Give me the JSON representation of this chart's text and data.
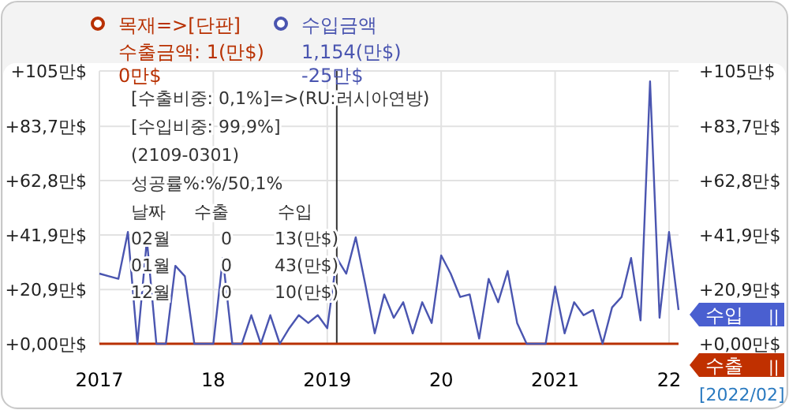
{
  "chart_data": {
    "type": "line",
    "x": [
      "2017-01",
      "2017-02",
      "2017-03",
      "2017-04",
      "2017-05",
      "2017-06",
      "2017-07",
      "2017-08",
      "2017-09",
      "2017-10",
      "2017-11",
      "2017-12",
      "2018-01",
      "2018-02",
      "2018-03",
      "2018-04",
      "2018-05",
      "2018-06",
      "2018-07",
      "2018-08",
      "2018-09",
      "2018-10",
      "2018-11",
      "2018-12",
      "2019-01",
      "2019-02",
      "2019-03",
      "2019-04",
      "2019-05",
      "2019-06",
      "2019-07",
      "2019-08",
      "2019-09",
      "2019-10",
      "2019-11",
      "2019-12",
      "2020-01",
      "2020-02",
      "2020-03",
      "2020-04",
      "2020-05",
      "2020-06",
      "2020-07",
      "2020-08",
      "2020-09",
      "2020-10",
      "2020-11",
      "2020-12",
      "2021-01",
      "2021-02",
      "2021-03",
      "2021-04",
      "2021-05",
      "2021-06",
      "2021-07",
      "2021-08",
      "2021-09",
      "2021-10",
      "2021-11",
      "2021-12",
      "2022-01",
      "2022-02"
    ],
    "series": [
      {
        "name": "목재=>[단판]",
        "color": "#b83000",
        "values": [
          0,
          0,
          0,
          0,
          0,
          0,
          0,
          0,
          0,
          0,
          0,
          0,
          0,
          0,
          0,
          0,
          0,
          0,
          0,
          0,
          0,
          0,
          0,
          0,
          0,
          0,
          0,
          0,
          0,
          0,
          0,
          0,
          0,
          0,
          0,
          0,
          0,
          0,
          0,
          0,
          0,
          0,
          0,
          0,
          0,
          0,
          0,
          0,
          0,
          0,
          0,
          0,
          0,
          0,
          0,
          0,
          0,
          0,
          0,
          0,
          0,
          0
        ]
      },
      {
        "name": "수입금액",
        "color": "#4a55b0",
        "values": [
          27,
          26,
          25,
          43,
          0,
          40,
          0,
          0,
          30,
          26,
          0,
          0,
          0,
          33,
          0,
          0,
          11,
          0,
          11,
          0,
          6,
          11,
          8,
          11,
          6,
          33,
          27,
          41,
          23,
          4,
          19,
          10,
          16,
          4,
          16,
          8,
          34,
          27,
          18,
          19,
          2,
          25,
          16,
          28,
          8,
          0,
          0,
          0,
          22,
          4,
          16,
          11,
          13,
          0,
          14,
          18,
          33,
          9,
          101,
          10,
          43,
          13
        ]
      }
    ],
    "xlim": [
      "2017-01",
      "2022-02"
    ],
    "xticks": [
      {
        "value": "2017-01",
        "label": "2017"
      },
      {
        "value": "2018-01",
        "label": "18"
      },
      {
        "value": "2019-01",
        "label": "2019"
      },
      {
        "value": "2020-01",
        "label": "20"
      },
      {
        "value": "2021-01",
        "label": "2021"
      },
      {
        "value": "2022-01",
        "label": "22"
      }
    ],
    "ylim": [
      0,
      105
    ],
    "yticks": [
      {
        "value": 0,
        "label": "+0,00만$"
      },
      {
        "value": 20.9,
        "label": "+20,9만$"
      },
      {
        "value": 41.9,
        "label": "+41,9만$"
      },
      {
        "value": 62.8,
        "label": "+62,8만$"
      },
      {
        "value": 83.7,
        "label": "+83,7만$"
      },
      {
        "value": 105,
        "label": "+105만$"
      }
    ],
    "y2lim": [
      0,
      105
    ],
    "y2ticks": [
      {
        "value": 0,
        "label": "+0,00만$"
      },
      {
        "value": 20.9,
        "label": "+20,9만$"
      },
      {
        "value": 41.9,
        "label": "+41,9만$"
      },
      {
        "value": 62.8,
        "label": "+62,8만$"
      },
      {
        "value": 83.7,
        "label": "+83,7만$"
      },
      {
        "value": 105,
        "label": "+105만$"
      }
    ],
    "grid": true,
    "legend": "top left",
    "ref_lines": [
      {
        "axis": "x",
        "value": "2019-02",
        "color": "#333333"
      }
    ],
    "annotations": [
      "수출금액: 1(만$)",
      "0만$",
      "1,154(만$)",
      "-25만$",
      "[수출비중: 0,1%]=>(RU:러시아연방)",
      "[수입비중: 99,9%]",
      "(2109-0301)",
      "성공률%:%/50,1%",
      "날짜",
      "수출",
      "수입",
      "02월",
      "0",
      "13(만$)",
      "01월",
      "0",
      "43(만$)",
      "12월",
      "0",
      "10(만$)",
      "수입",
      "||",
      "수출",
      "||",
      "[2022/02]"
    ]
  }
}
